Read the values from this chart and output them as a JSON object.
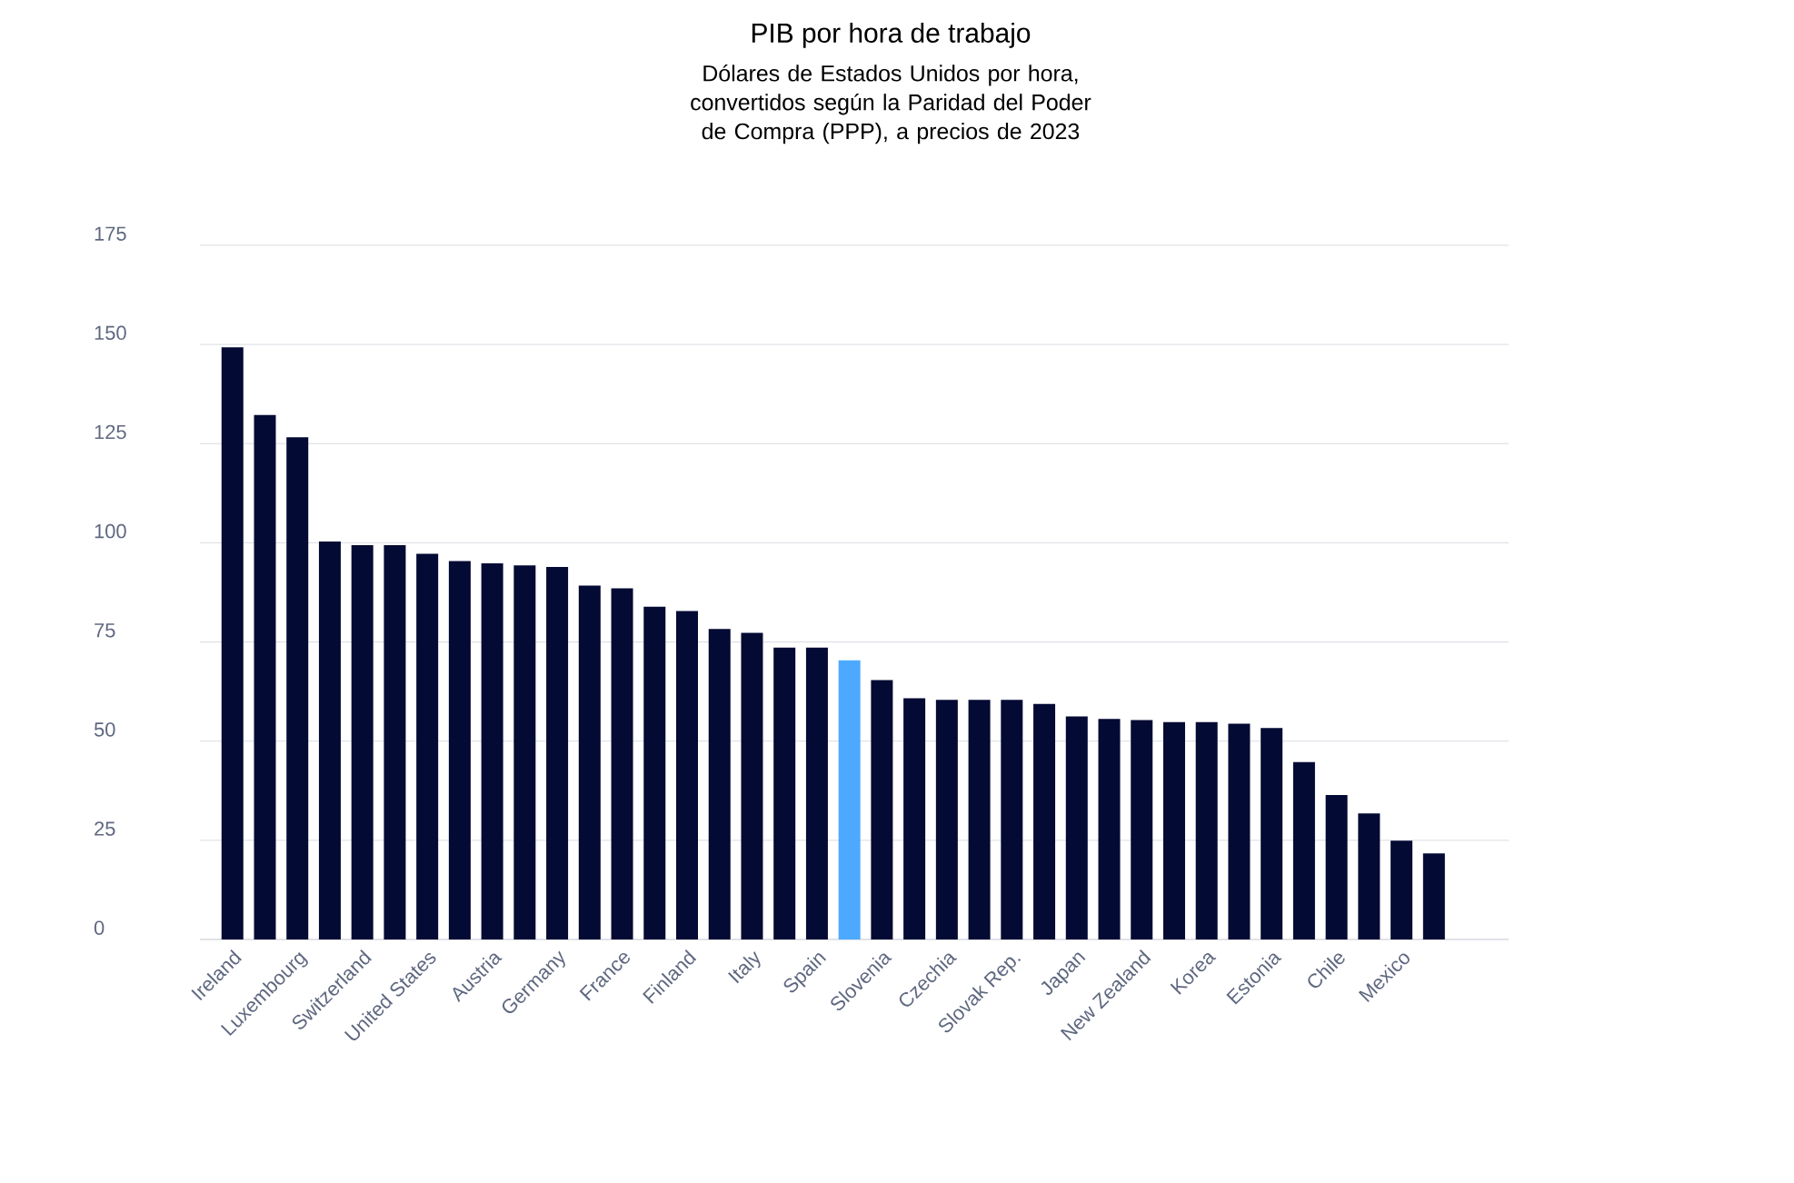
{
  "chart_data": {
    "type": "bar",
    "title": "PIB por hora de trabajo",
    "subtitle": "Dólares de Estados Unidos por hora, convertidos según la Paridad del Poder de Compra (PPP), a precios de 2023",
    "categories": [
      "Ireland",
      null,
      "Luxembourg",
      null,
      "Switzerland",
      null,
      "United States",
      null,
      "Austria",
      null,
      "Germany",
      null,
      "France",
      null,
      "Finland",
      null,
      "Italy",
      null,
      "Spain",
      null,
      "Slovenia",
      null,
      "Czechia",
      null,
      "Slovak Rep.",
      null,
      "Japan",
      null,
      "New Zealand",
      null,
      "Korea",
      null,
      "Estonia",
      null,
      "Chile",
      null,
      "Mexico",
      null
    ],
    "values": [
      149.3,
      132.2,
      126.6,
      100.3,
      99.4,
      99.4,
      97.2,
      95.4,
      94.8,
      94.3,
      93.9,
      89.2,
      88.5,
      83.9,
      82.8,
      78.3,
      77.3,
      73.6,
      73.6,
      70.4,
      65.4,
      60.8,
      60.4,
      60.4,
      60.4,
      59.4,
      56.2,
      55.6,
      55.3,
      54.8,
      54.8,
      54.4,
      53.3,
      44.7,
      36.4,
      31.8,
      24.9,
      21.7
    ],
    "colors": [
      "#030a33",
      "#030a33",
      "#030a33",
      "#030a33",
      "#030a33",
      "#030a33",
      "#030a33",
      "#030a33",
      "#030a33",
      "#030a33",
      "#030a33",
      "#030a33",
      "#030a33",
      "#030a33",
      "#030a33",
      "#030a33",
      "#030a33",
      "#030a33",
      "#030a33",
      "#4da9ff",
      "#030a33",
      "#030a33",
      "#030a33",
      "#030a33",
      "#030a33",
      "#030a33",
      "#030a33",
      "#030a33",
      "#030a33",
      "#030a33",
      "#030a33",
      "#030a33",
      "#030a33",
      "#030a33",
      "#030a33",
      "#030a33",
      "#030a33",
      "#030a33"
    ],
    "ylim": [
      0,
      175
    ],
    "yticks": [
      0,
      25,
      50,
      75,
      100,
      125,
      150,
      175
    ],
    "grid": "y"
  }
}
